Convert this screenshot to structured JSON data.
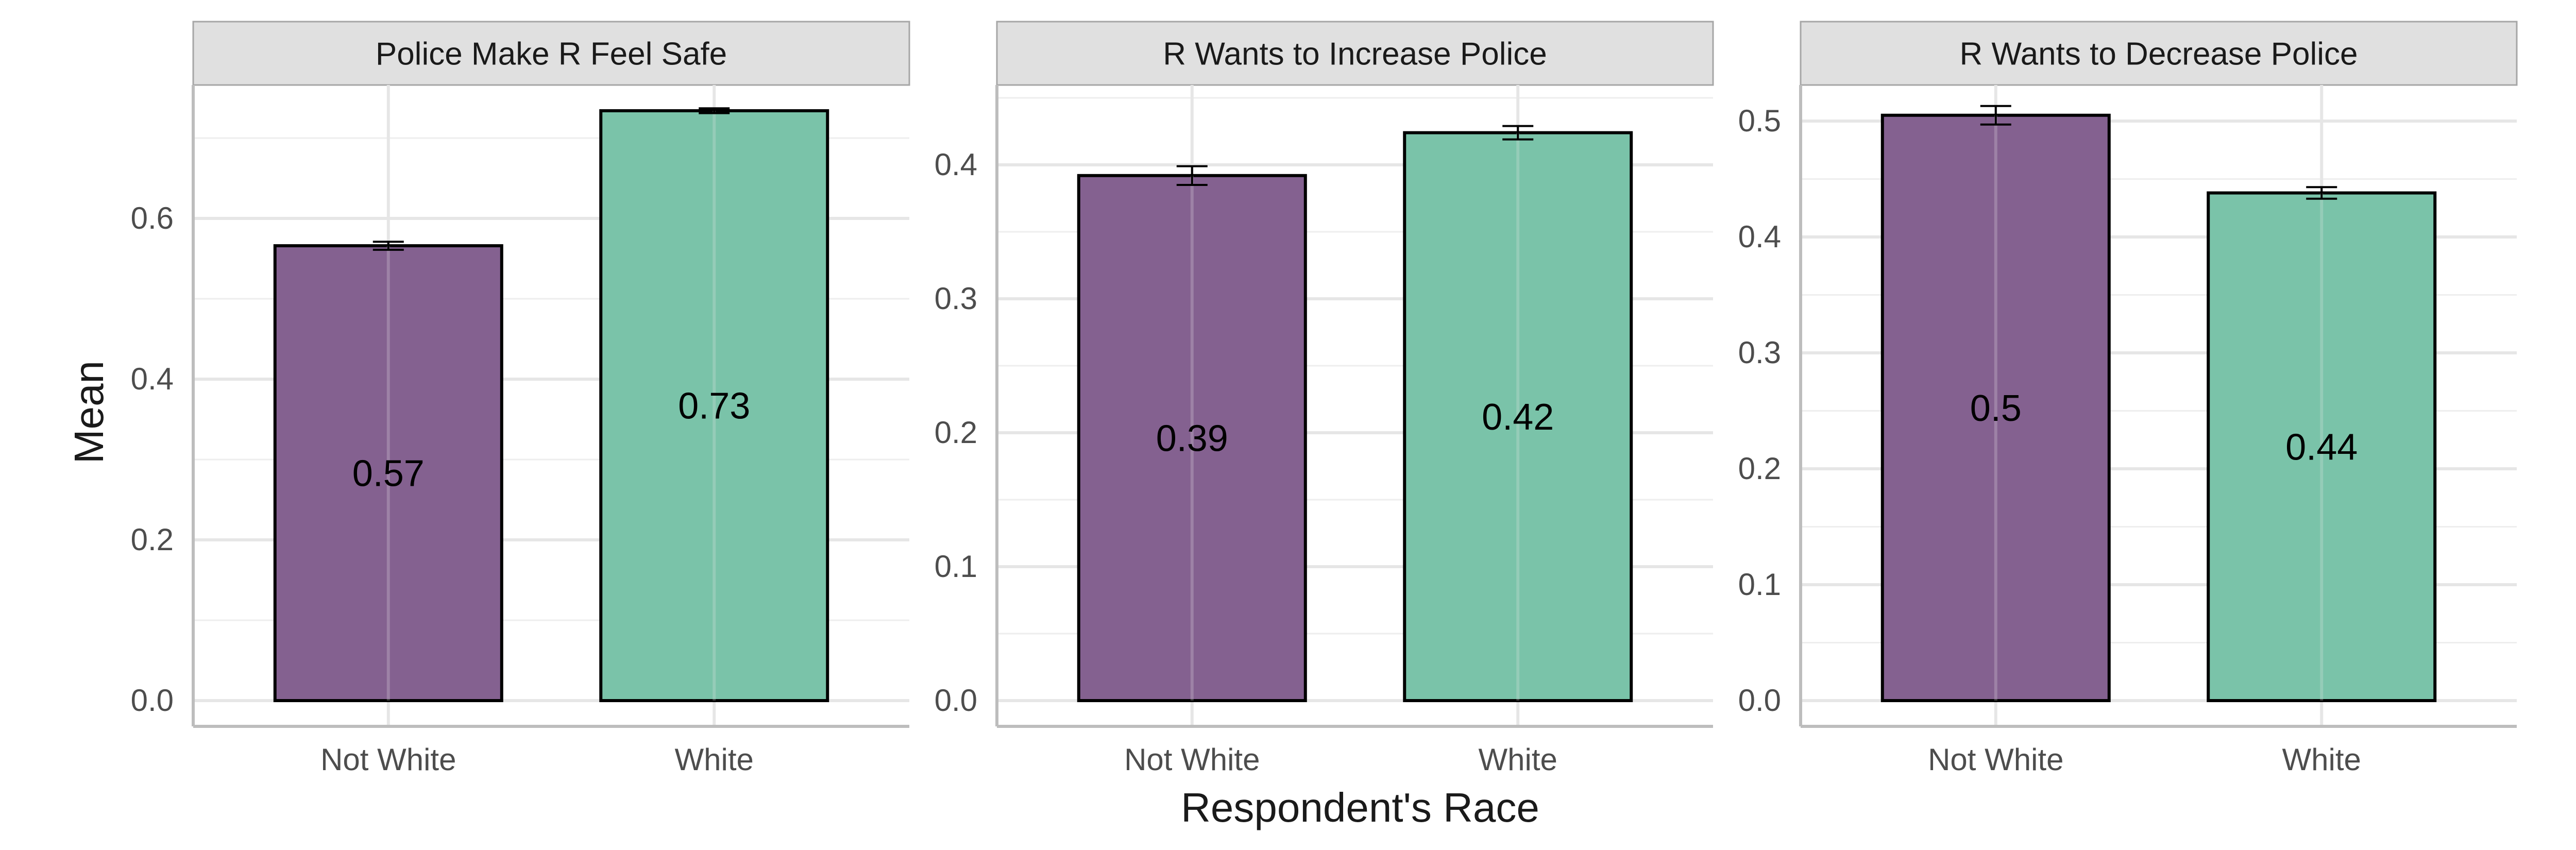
{
  "chart_data": {
    "type": "bar",
    "xlabel": "Respondent's Race",
    "ylabel": "Mean",
    "categories": [
      "Not White",
      "White"
    ],
    "colors": {
      "Not White": "#846190",
      "White": "#7ac3a9"
    },
    "grid": true,
    "legend": "none",
    "panels": [
      {
        "title": "Police Make R Feel Safe",
        "ylim": [
          0,
          0.75
        ],
        "yticks": [
          0.0,
          0.2,
          0.4,
          0.6
        ],
        "ytick_labels": [
          "0.0",
          "0.2",
          "0.4",
          "0.6"
        ],
        "values": [
          0.566,
          0.734
        ],
        "errors": [
          0.005,
          0.003
        ],
        "labels": [
          "0.57",
          "0.73"
        ]
      },
      {
        "title": "R Wants to Increase Police",
        "ylim": [
          0,
          0.45
        ],
        "yticks": [
          0.0,
          0.1,
          0.2,
          0.3,
          0.4
        ],
        "ytick_labels": [
          "0.0",
          "0.1",
          "0.2",
          "0.3",
          "0.4"
        ],
        "values": [
          0.392,
          0.424
        ],
        "errors": [
          0.007,
          0.005
        ],
        "labels": [
          "0.39",
          "0.42"
        ]
      },
      {
        "title": "R Wants to Decrease Police",
        "ylim": [
          0,
          0.52
        ],
        "yticks": [
          0.0,
          0.1,
          0.2,
          0.3,
          0.4,
          0.5
        ],
        "ytick_labels": [
          "0.0",
          "0.1",
          "0.2",
          "0.3",
          "0.4",
          "0.5"
        ],
        "values": [
          0.505,
          0.438
        ],
        "errors": [
          0.008,
          0.005
        ],
        "labels": [
          "0.5",
          "0.44"
        ]
      }
    ]
  }
}
